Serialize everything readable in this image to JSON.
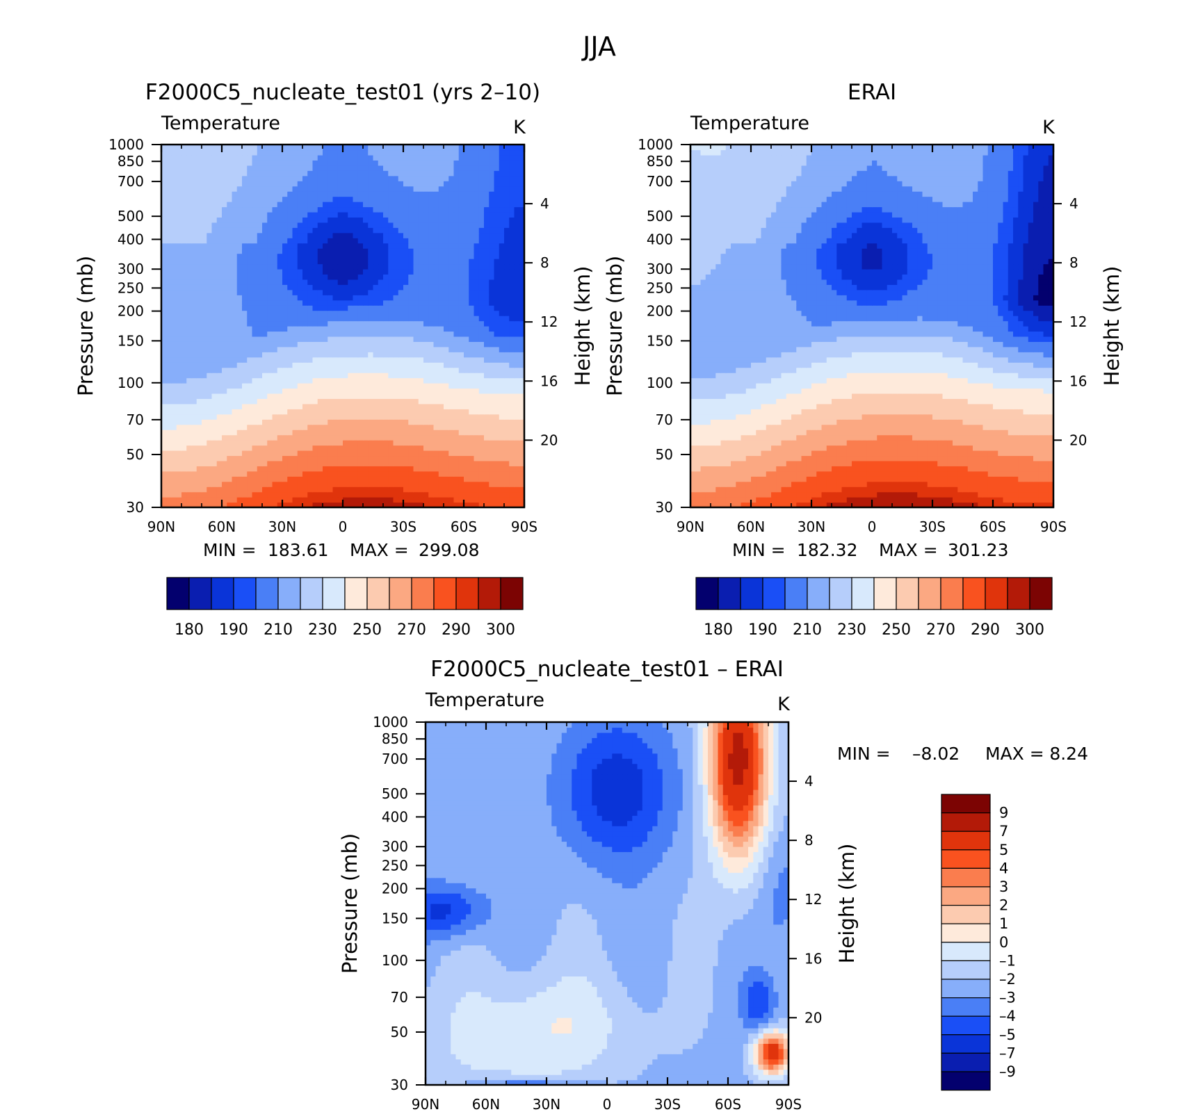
{
  "figure": {
    "title": "JJA"
  },
  "palettes": {
    "abs": [
      "#03006e",
      "#0a1eb0",
      "#0a34d8",
      "#1a4ff6",
      "#4a7ff6",
      "#87aefa",
      "#b6cefb",
      "#d8e9fc",
      "#feeadb",
      "#fccbb0",
      "#fba882",
      "#fa7d4e",
      "#f9521f",
      "#e0340c",
      "#b31a08",
      "#7c0403"
    ],
    "diff": [
      "#03006e",
      "#0a1eb0",
      "#0a34d8",
      "#1a4ff6",
      "#4a7ff6",
      "#87aefa",
      "#b6cefb",
      "#d8e9fc",
      "#feeadb",
      "#fccbb0",
      "#fba882",
      "#fa7d4e",
      "#f9521f",
      "#e0340c",
      "#b31a08",
      "#7c0403"
    ]
  },
  "chart_data": [
    {
      "type": "heatmap",
      "title": "F2000C5_nucleate_test01 (yrs 2–10)",
      "subtitle_left": "Temperature",
      "subtitle_right": "K",
      "ylabel": "Pressure (mb)",
      "ylabel_right": "Height (km)",
      "xticks": [
        "90N",
        "60N",
        "30N",
        "0",
        "30S",
        "60S",
        "90S"
      ],
      "yticks": [
        30,
        50,
        70,
        100,
        150,
        200,
        250,
        300,
        400,
        500,
        700,
        850,
        1000
      ],
      "yticks_right": [
        20,
        16,
        12,
        8,
        4
      ],
      "ylim": [
        1000,
        30
      ],
      "scale_y": "log",
      "stats": {
        "min_label": "MIN =",
        "min": "183.61",
        "max_label": "MAX =",
        "max": "299.08"
      },
      "colorbar": {
        "orientation": "horizontal",
        "tick_labels": [
          "180",
          "190",
          "210",
          "230",
          "250",
          "270",
          "290",
          "300"
        ]
      },
      "field": {
        "tmin": 183.61,
        "tmax": 299.08,
        "plateau": 208,
        "jet": 196,
        "pole": 190,
        "surface": 299
      }
    },
    {
      "type": "heatmap",
      "title": "ERAI",
      "subtitle_left": "Temperature",
      "subtitle_right": "K",
      "ylabel": "Pressure (mb)",
      "ylabel_right": "Height (km)",
      "xticks": [
        "90N",
        "60N",
        "30N",
        "0",
        "30S",
        "60S",
        "90S"
      ],
      "yticks": [
        30,
        50,
        70,
        100,
        150,
        200,
        250,
        300,
        400,
        500,
        700,
        850,
        1000
      ],
      "yticks_right": [
        20,
        16,
        12,
        8,
        4
      ],
      "ylim": [
        1000,
        30
      ],
      "scale_y": "log",
      "stats": {
        "min_label": "MIN =",
        "min": "182.32",
        "max_label": "MAX =",
        "max": "301.23"
      },
      "colorbar": {
        "orientation": "horizontal",
        "tick_labels": [
          "180",
          "190",
          "210",
          "230",
          "250",
          "270",
          "290",
          "300"
        ]
      },
      "field": {
        "tmin": 182.32,
        "tmax": 301.23,
        "plateau": 212,
        "jet": 199,
        "pole": 186,
        "surface": 301
      }
    },
    {
      "type": "heatmap",
      "title": "F2000C5_nucleate_test01 – ERAI",
      "subtitle_left": "Temperature",
      "subtitle_right": "K",
      "ylabel": "Pressure (mb)",
      "ylabel_right": "Height (km)",
      "xticks": [
        "90N",
        "60N",
        "30N",
        "0",
        "30S",
        "60S",
        "90S"
      ],
      "yticks": [
        30,
        50,
        70,
        100,
        150,
        200,
        250,
        300,
        400,
        500,
        700,
        850,
        1000
      ],
      "yticks_right": [
        20,
        16,
        12,
        8,
        4
      ],
      "ylim": [
        1000,
        30
      ],
      "scale_y": "log",
      "stats": {
        "min_label": "MIN =",
        "min": "–8.02",
        "max_label": "MAX =",
        "max": "8.24"
      },
      "colorbar": {
        "orientation": "vertical",
        "tick_labels": [
          "9",
          "7",
          "5",
          "4",
          "3",
          "2",
          "1",
          "0",
          "–1",
          "–2",
          "–3",
          "–4",
          "–5",
          "–7",
          "–9"
        ]
      },
      "field": {
        "min": -8.02,
        "max": 8.24
      }
    }
  ]
}
